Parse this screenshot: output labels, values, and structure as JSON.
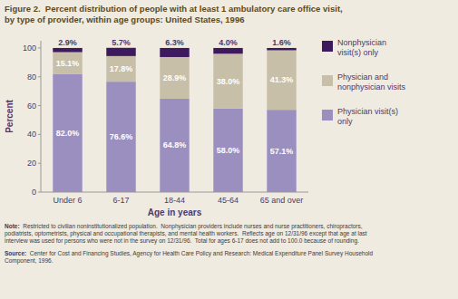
{
  "chart_data": {
    "type": "bar",
    "stacked": true,
    "title": "Figure 2.  Percent distribution of people with at least 1 ambulatory care office visit,\nby type of provider, within age groups: United States, 1996",
    "x_label": "Age in years",
    "y_label": "Percent",
    "categories": [
      "Under 6",
      "6-17",
      "18-44",
      "45-64",
      "65 and over"
    ],
    "series": [
      {
        "name": "Physician visit(s)\nonly",
        "color": "#9b8fc0",
        "values": [
          82.0,
          76.6,
          64.8,
          58.0,
          57.1
        ],
        "value_labels": [
          "82.0%",
          "76.6%",
          "64.8%",
          "58.0%",
          "57.1%"
        ]
      },
      {
        "name": "Physician and\nnonphysician visits",
        "color": "#c8bfa8",
        "values": [
          15.1,
          17.8,
          28.9,
          38.0,
          41.3
        ],
        "value_labels": [
          "15.1%",
          "17.8%",
          "28.9%",
          "38.0%",
          "41.3%"
        ]
      },
      {
        "name": "Nonphysician\nvisit(s) only",
        "color": "#3d1a5e",
        "values": [
          2.9,
          5.7,
          6.3,
          4.0,
          1.6
        ],
        "value_labels": [
          "2.9%",
          "5.7%",
          "6.3%",
          "4.0%",
          "1.6%"
        ]
      }
    ],
    "ylim": [
      0,
      105
    ],
    "yticks": [
      0,
      20,
      40,
      60,
      80,
      100
    ],
    "grid": false,
    "legend": "right",
    "data_labels": true,
    "annotations": [
      "Note:  Restricted to civilian noninstitutionalized population.  Nonphysician providers include nurses and nurse practitioners, chiropractors,\npodiatrists, optometrists, physical and occupational therapists, and mental health workers.  Reflects age on 12/31/96 except that age at last\ninterview was used for persons who were not in the survey on 12/31/96.  Total for ages 6-17 does not add to 100.0 because of rounding.",
      "Source:  Center for Cost and Financing Studies, Agency for Health Care Policy and Research: Medical Expenditure Panel Survey Household\nComponent, 1996."
    ]
  }
}
